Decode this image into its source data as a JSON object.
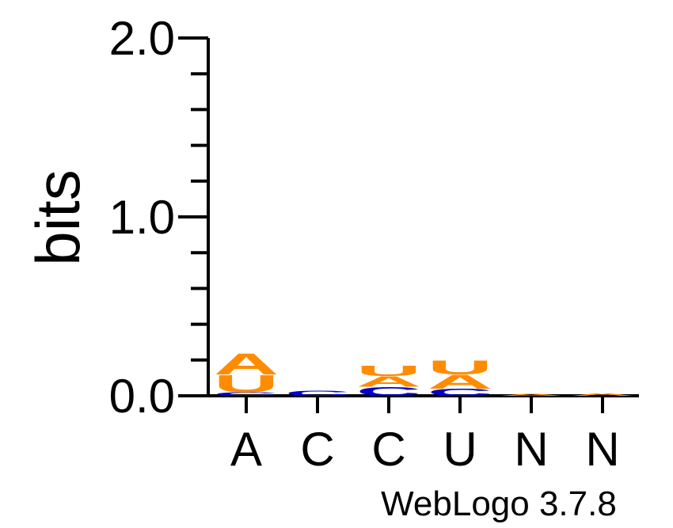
{
  "chart_data": {
    "type": "sequence-logo",
    "ylabel": "bits",
    "ylim": [
      0,
      2
    ],
    "yticks": [
      {
        "value": 0,
        "label": "0.0"
      },
      {
        "value": 1,
        "label": "1.0"
      },
      {
        "value": 2,
        "label": "2.0"
      }
    ],
    "yminor_step": 0.2,
    "positions": [
      {
        "label": "A",
        "stack": [
          {
            "letter": "C",
            "height": 0.02,
            "color": "#0000cc"
          },
          {
            "letter": "U",
            "height": 0.1,
            "color": "#ff8c00"
          },
          {
            "letter": "A",
            "height": 0.12,
            "color": "#ff8c00"
          }
        ]
      },
      {
        "label": "C",
        "stack": [
          {
            "letter": "C",
            "height": 0.03,
            "color": "#0000cc"
          }
        ]
      },
      {
        "label": "C",
        "stack": [
          {
            "letter": "C",
            "height": 0.05,
            "color": "#0000cc"
          },
          {
            "letter": "A",
            "height": 0.06,
            "color": "#ff8c00"
          },
          {
            "letter": "U",
            "height": 0.06,
            "color": "#ff8c00"
          }
        ]
      },
      {
        "label": "U",
        "stack": [
          {
            "letter": "C",
            "height": 0.04,
            "color": "#0000cc"
          },
          {
            "letter": "A",
            "height": 0.08,
            "color": "#ff8c00"
          },
          {
            "letter": "U",
            "height": 0.08,
            "color": "#ff8c00"
          }
        ]
      },
      {
        "label": "N",
        "stack": [
          {
            "letter": "A",
            "height": 0.01,
            "color": "#ff8c00"
          }
        ]
      },
      {
        "label": "N",
        "stack": [
          {
            "letter": "A",
            "height": 0.015,
            "color": "#ff8c00"
          }
        ]
      }
    ],
    "colors": {
      "A": "#ff8c00",
      "U": "#ff8c00",
      "C": "#0000cc"
    }
  },
  "credit": "WebLogo 3.7.8"
}
